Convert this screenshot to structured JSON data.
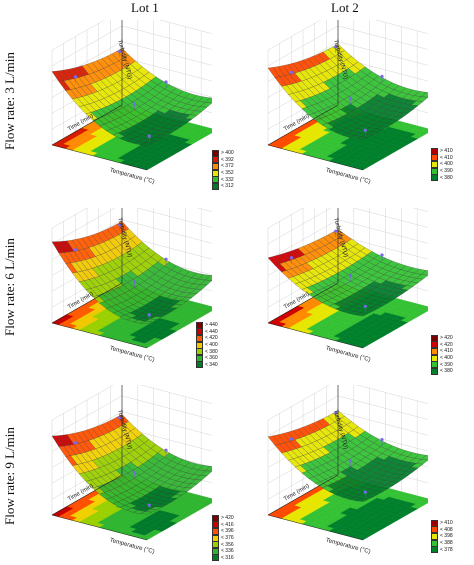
{
  "columns": [
    "Lot 1",
    "Lot 2"
  ],
  "rows": [
    "Flow rate: 3 L/min",
    "Flow rate: 6 L/min",
    "Flow rate: 9 L/min"
  ],
  "chart_data": [
    {
      "type": "surface",
      "panel": "flow-3-lot-1",
      "zlabel": "Turbidity (NTU)",
      "xlabel": "Temperature (°C)",
      "ylabel": "Time (min)",
      "zlim": [
        300,
        450
      ],
      "legend": [
        "> 400",
        "< 392",
        "< 372",
        "< 352",
        "< 332",
        "< 312"
      ],
      "colors": [
        "#7a0000",
        "#d81a00",
        "#ff8a00",
        "#e6e600",
        "#2fbf2f",
        "#007a2a"
      ],
      "surface": {
        "max": 430,
        "min": 320
      }
    },
    {
      "type": "surface",
      "panel": "flow-3-lot-2",
      "zlabel": "Turbidity (NTU)",
      "xlabel": "Temperature (°C)",
      "ylabel": "Time (min)",
      "zlim": [
        340,
        440
      ],
      "legend": [
        "> 410",
        "< 410",
        "< 400",
        "< 390",
        "< 380"
      ],
      "colors": [
        "#b00000",
        "#ff4a00",
        "#e6e600",
        "#34c234",
        "#00802b"
      ],
      "surface": {
        "max": 430,
        "min": 360
      }
    },
    {
      "type": "surface",
      "panel": "flow-6-lot-1",
      "zlabel": "Turbidity (NTU)",
      "xlabel": "Temperature (°C)",
      "ylabel": "Time (min)",
      "zlim": [
        320,
        460
      ],
      "legend": [
        "> 440",
        "< 440",
        "< 420",
        "< 400",
        "< 380",
        "< 360",
        "< 340"
      ],
      "colors": [
        "#800000",
        "#c40000",
        "#ff5a00",
        "#f0c800",
        "#9ad000",
        "#2fb52f",
        "#007a2a"
      ],
      "surface": {
        "max": 455,
        "min": 335
      }
    },
    {
      "type": "surface",
      "panel": "flow-6-lot-2",
      "zlabel": "Turbidity (NTU)",
      "xlabel": "Temperature (°C)",
      "ylabel": "Time (min)",
      "zlim": [
        340,
        460
      ],
      "legend": [
        "> 420",
        "< 420",
        "< 410",
        "< 400",
        "< 390",
        "< 380"
      ],
      "colors": [
        "#7a0000",
        "#d00000",
        "#ff8a00",
        "#e6e600",
        "#34c234",
        "#00802b"
      ],
      "surface": {
        "max": 430,
        "min": 370
      }
    },
    {
      "type": "surface",
      "panel": "flow-9-lot-1",
      "zlabel": "Turbidity (NTU)",
      "xlabel": "Temperature (°C)",
      "ylabel": "Time (min)",
      "zlim": [
        300,
        450
      ],
      "legend": [
        "> 420",
        "< 416",
        "< 396",
        "< 376",
        "< 356",
        "< 336",
        "< 316"
      ],
      "colors": [
        "#7a0000",
        "#c80000",
        "#ff5000",
        "#f0d000",
        "#9ad000",
        "#2fb52f",
        "#007a2a"
      ],
      "surface": {
        "max": 440,
        "min": 320
      }
    },
    {
      "type": "surface",
      "panel": "flow-9-lot-2",
      "zlabel": "Turbidity (NTU)",
      "xlabel": "Temperature (°C)",
      "ylabel": "Time (min)",
      "zlim": [
        340,
        440
      ],
      "legend": [
        "> 410",
        "< 408",
        "< 398",
        "< 388",
        "< 378"
      ],
      "colors": [
        "#a00000",
        "#ff4a00",
        "#e6e600",
        "#34c234",
        "#00802b"
      ],
      "surface": {
        "max": 430,
        "min": 370
      }
    }
  ]
}
